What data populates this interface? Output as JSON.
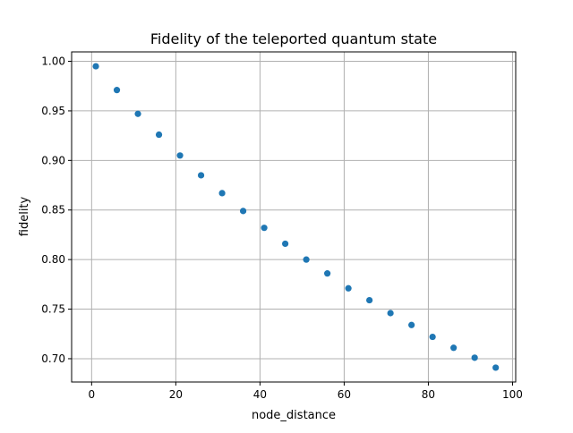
{
  "chart_data": {
    "type": "scatter",
    "title": "Fidelity of the teleported quantum state",
    "xlabel": "node_distance",
    "ylabel": "fidelity",
    "xlim": [
      -4.75,
      100.75
    ],
    "ylim": [
      0.6765,
      1.0095
    ],
    "xticks": [
      0,
      20,
      40,
      60,
      80,
      100
    ],
    "xtick_labels": [
      "0",
      "20",
      "40",
      "60",
      "80",
      "100"
    ],
    "yticks": [
      0.7,
      0.75,
      0.8,
      0.85,
      0.9,
      0.95,
      1.0
    ],
    "ytick_labels": [
      "0.70",
      "0.75",
      "0.80",
      "0.85",
      "0.90",
      "0.95",
      "1.00"
    ],
    "grid": true,
    "marker_color": "#1f77b4",
    "x": [
      1,
      6,
      11,
      16,
      21,
      26,
      31,
      36,
      41,
      46,
      51,
      56,
      61,
      66,
      71,
      76,
      81,
      86,
      91,
      96
    ],
    "y": [
      0.995,
      0.971,
      0.947,
      0.926,
      0.905,
      0.885,
      0.867,
      0.849,
      0.832,
      0.816,
      0.8,
      0.786,
      0.771,
      0.759,
      0.746,
      0.734,
      0.722,
      0.711,
      0.701,
      0.691
    ]
  }
}
